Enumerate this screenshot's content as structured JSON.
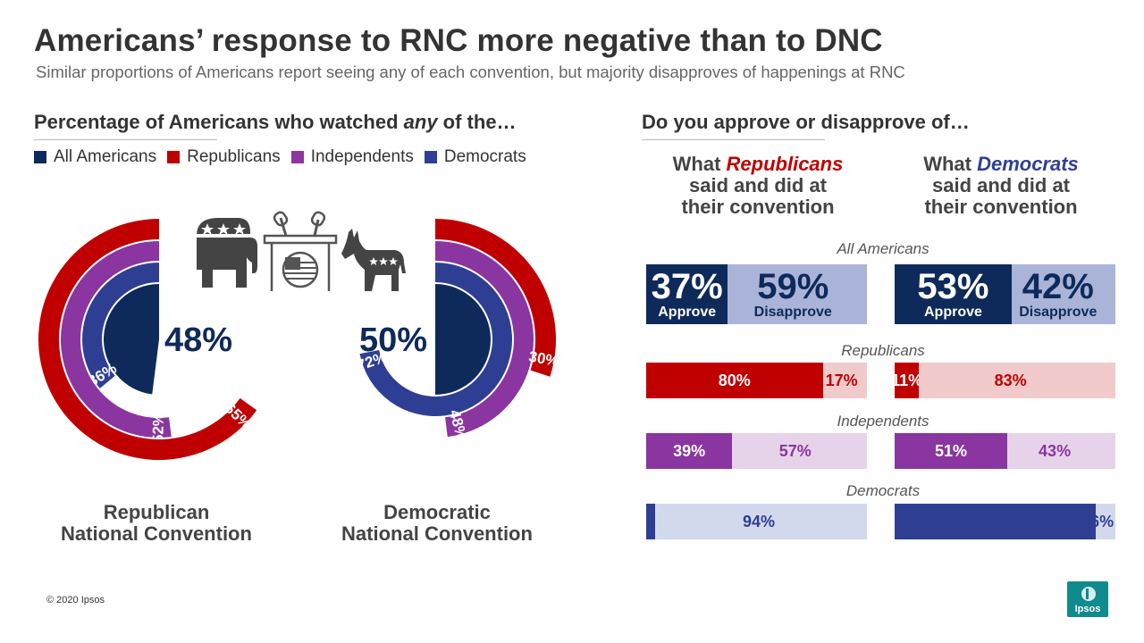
{
  "title": "Americans’ response to RNC more negative than to DNC",
  "subtitle": "Similar proportions of Americans report seeing any of each convention, but majority disapproves of happenings at RNC",
  "left_heading": {
    "pre": "Percentage of Americans who watched ",
    "em": "any",
    "post": " of the…"
  },
  "right_heading": "Do you approve or disapprove of…",
  "colors": {
    "all": "#0e2a5a",
    "rep": "#c00000",
    "ind": "#8a35a0",
    "dem": "#2e3f93"
  },
  "legend": [
    {
      "label": "All Americans",
      "color": "#0e2a5a"
    },
    {
      "label": "Republicans",
      "color": "#c00000"
    },
    {
      "label": "Independents",
      "color": "#8a35a0"
    },
    {
      "label": "Democrats",
      "color": "#2e3f93"
    }
  ],
  "icons": [
    "republican-elephant-icon",
    "podium-microphones-icon",
    "democratic-donkey-icon"
  ],
  "rnc_label": {
    "line1": "Republican",
    "line2": "National Convention"
  },
  "dnc_label": {
    "line1": "Democratic",
    "line2": "National Convention"
  },
  "col_rep": {
    "line1_pre": "What ",
    "line1_em": "Republicans",
    "line2": "said and did at",
    "line3": "their convention"
  },
  "col_dem": {
    "line1_pre": "What ",
    "line1_em": "Democrats",
    "line2": "said and did at",
    "line3": "their convention"
  },
  "group_labels": [
    "All Americans",
    "Republicans",
    "Independents",
    "Democrats"
  ],
  "approve_word": "Approve",
  "disapprove_word": "Disapprove",
  "copyright": "© 2020 Ipsos",
  "logo_text": "Ipsos",
  "chart_data": [
    {
      "type": "pie",
      "title": "Republican National Convention",
      "series": [
        {
          "name": "All Americans",
          "value": 48,
          "label": "48%"
        },
        {
          "name": "Democrats",
          "value": 36,
          "label": "36%"
        },
        {
          "name": "Independents",
          "value": 52,
          "label": "52%"
        },
        {
          "name": "Republicans",
          "value": 65,
          "label": "65%"
        }
      ]
    },
    {
      "type": "pie",
      "title": "Democratic National Convention",
      "series": [
        {
          "name": "All Americans",
          "value": 50,
          "label": "50%"
        },
        {
          "name": "Democrats",
          "value": 72,
          "label": "72%"
        },
        {
          "name": "Independents",
          "value": 48,
          "label": "48%"
        },
        {
          "name": "Republicans",
          "value": 30,
          "label": "30%"
        }
      ]
    },
    {
      "type": "bar",
      "title": "What Republicans said and did at their convention",
      "categories": [
        "All Americans",
        "Republicans",
        "Independents",
        "Democrats"
      ],
      "series": [
        {
          "name": "Approve",
          "values": [
            37,
            80,
            39,
            4
          ],
          "labels": [
            "37%",
            "80%",
            "39%",
            "4%"
          ]
        },
        {
          "name": "Disapprove",
          "values": [
            59,
            17,
            57,
            94
          ],
          "labels": [
            "59%",
            "17%",
            "57%",
            "94%"
          ]
        }
      ]
    },
    {
      "type": "bar",
      "title": "What Democrats said and did at their convention",
      "categories": [
        "All Americans",
        "Republicans",
        "Independents",
        "Democrats"
      ],
      "series": [
        {
          "name": "Approve",
          "values": [
            53,
            11,
            51,
            91
          ],
          "labels": [
            "53%",
            "11%",
            "51%",
            "91%"
          ]
        },
        {
          "name": "Disapprove",
          "values": [
            42,
            83,
            43,
            6
          ],
          "labels": [
            "42%",
            "83%",
            "43%",
            "6%"
          ]
        }
      ]
    }
  ]
}
